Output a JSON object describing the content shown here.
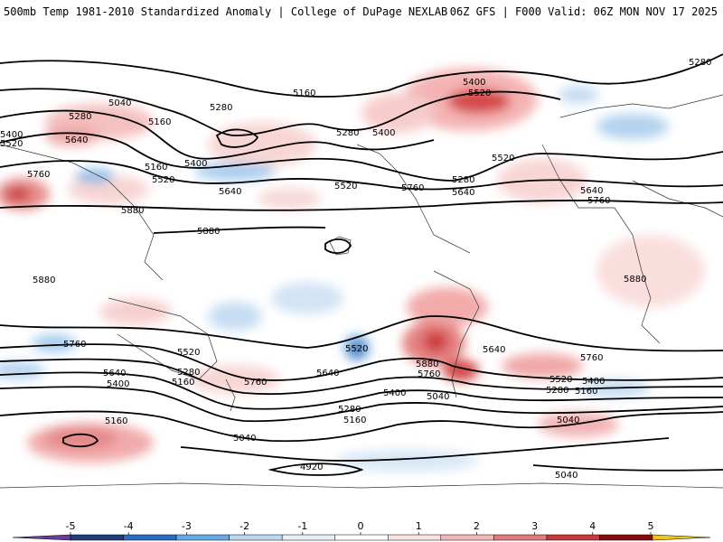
{
  "header": {
    "title": "500mb Temp 1981-2010 Standardized Anomaly | College of DuPage NEXLAB",
    "run_info": "06Z GFS | F000 Valid: 06Z MON NOV 17 2025"
  },
  "contour_labels": [
    {
      "id": "c1",
      "text": "5280"
    },
    {
      "id": "c2",
      "text": "5040"
    },
    {
      "id": "c3",
      "text": "5280"
    },
    {
      "id": "c4",
      "text": "5160"
    },
    {
      "id": "c5",
      "text": "5400"
    },
    {
      "id": "c6",
      "text": "5520"
    },
    {
      "id": "c7",
      "text": "5640"
    },
    {
      "id": "c8",
      "text": "5160"
    },
    {
      "id": "c9",
      "text": "5760"
    },
    {
      "id": "c10",
      "text": "5880"
    },
    {
      "id": "c11",
      "text": "5280"
    },
    {
      "id": "c12",
      "text": "5160"
    },
    {
      "id": "c13",
      "text": "5400"
    },
    {
      "id": "c14",
      "text": "5520"
    },
    {
      "id": "c15",
      "text": "5640"
    },
    {
      "id": "c16",
      "text": "5880"
    },
    {
      "id": "c17",
      "text": "5280"
    },
    {
      "id": "c18",
      "text": "5400"
    },
    {
      "id": "c19",
      "text": "5520"
    },
    {
      "id": "c20",
      "text": "5760"
    },
    {
      "id": "c21",
      "text": "5400"
    },
    {
      "id": "c22",
      "text": "5520"
    },
    {
      "id": "c23",
      "text": "5280"
    },
    {
      "id": "c24",
      "text": "5520"
    },
    {
      "id": "c25",
      "text": "5640"
    },
    {
      "id": "c26",
      "text": "5640"
    },
    {
      "id": "c27",
      "text": "5760"
    },
    {
      "id": "c28",
      "text": "5880"
    },
    {
      "id": "c29",
      "text": "5880"
    },
    {
      "id": "c30",
      "text": "5760"
    },
    {
      "id": "c31",
      "text": "5520"
    },
    {
      "id": "c32",
      "text": "5280"
    },
    {
      "id": "c33",
      "text": "5640"
    },
    {
      "id": "c34",
      "text": "5400"
    },
    {
      "id": "c35",
      "text": "5160"
    },
    {
      "id": "c36",
      "text": "5760"
    },
    {
      "id": "c37",
      "text": "5640"
    },
    {
      "id": "c38",
      "text": "5400"
    },
    {
      "id": "c39",
      "text": "5280"
    },
    {
      "id": "c40",
      "text": "5160"
    },
    {
      "id": "c41",
      "text": "5160"
    },
    {
      "id": "c42",
      "text": "5040"
    },
    {
      "id": "c43",
      "text": "4920"
    },
    {
      "id": "c44",
      "text": "5520"
    },
    {
      "id": "c45",
      "text": "5880"
    },
    {
      "id": "c46",
      "text": "5760"
    },
    {
      "id": "c47",
      "text": "5040"
    },
    {
      "id": "c48",
      "text": "5640"
    },
    {
      "id": "c49",
      "text": "5760"
    },
    {
      "id": "c50",
      "text": "5520"
    },
    {
      "id": "c51",
      "text": "5400"
    },
    {
      "id": "c52",
      "text": "5280"
    },
    {
      "id": "c53",
      "text": "5160"
    },
    {
      "id": "c54",
      "text": "5040"
    },
    {
      "id": "c55",
      "text": "5040"
    }
  ],
  "colorbar": {
    "ticks": [
      "-5",
      "-4",
      "-3",
      "-2",
      "-1",
      "0",
      "1",
      "2",
      "3",
      "4",
      "5"
    ],
    "colors": [
      "#6a3d9a",
      "#1c3f7a",
      "#2c6cbf",
      "#6aa9e0",
      "#b9d8f2",
      "#e6f0fa",
      "#ffffff",
      "#fbe2e2",
      "#f3b7b7",
      "#e07c7c",
      "#c83a3a",
      "#8a0d0d",
      "#f0c419"
    ]
  }
}
